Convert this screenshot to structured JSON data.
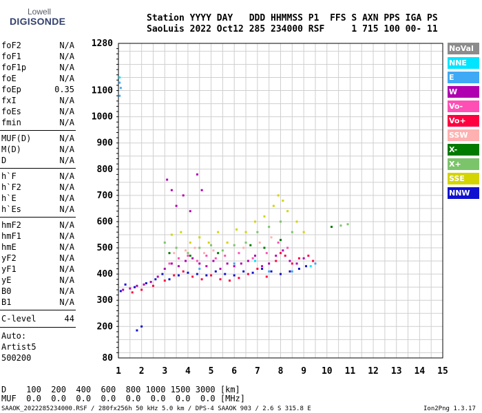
{
  "logo": {
    "line1": "Lowell",
    "line2": "DIGISONDE"
  },
  "header": {
    "line1": "Station YYYY DAY   DDD HHMMSS P1  FFS S AXN PPS IGA PS",
    "line2": "SaoLuis 2022 Oct12 285 234000 RSF     1 715 100 00- 11"
  },
  "params": {
    "group1": [
      {
        "name": "foF2",
        "value": "N/A"
      },
      {
        "name": "foF1",
        "value": "N/A"
      },
      {
        "name": "foF1p",
        "value": "N/A"
      },
      {
        "name": "foE",
        "value": "N/A"
      },
      {
        "name": "foEp",
        "value": "0.35"
      },
      {
        "name": "fxI",
        "value": "N/A"
      },
      {
        "name": "foEs",
        "value": "N/A"
      },
      {
        "name": "fmin",
        "value": "N/A"
      }
    ],
    "group2": [
      {
        "name": "MUF(D)",
        "value": "N/A"
      },
      {
        "name": "M(D)",
        "value": "N/A"
      },
      {
        "name": "D",
        "value": "N/A"
      }
    ],
    "group3": [
      {
        "name": "h`F",
        "value": "N/A"
      },
      {
        "name": "h`F2",
        "value": "N/A"
      },
      {
        "name": "h`E",
        "value": "N/A"
      },
      {
        "name": "h`Es",
        "value": "N/A"
      }
    ],
    "group4": [
      {
        "name": "hmF2",
        "value": "N/A"
      },
      {
        "name": "hmF1",
        "value": "N/A"
      },
      {
        "name": "hmE",
        "value": "N/A"
      },
      {
        "name": "yF2",
        "value": "N/A"
      },
      {
        "name": "yF1",
        "value": "N/A"
      },
      {
        "name": "yE",
        "value": "N/A"
      },
      {
        "name": "B0",
        "value": "N/A"
      },
      {
        "name": "B1",
        "value": "N/A"
      }
    ],
    "clevel": {
      "name": "C-level",
      "value": "44"
    }
  },
  "auto": {
    "line1": "Auto:",
    "line2": "Artist5",
    "line3": "500200"
  },
  "legend": [
    {
      "label": "NoVal",
      "color": "#8c8c8c"
    },
    {
      "label": "NNE",
      "color": "#00e5ff"
    },
    {
      "label": "E",
      "color": "#3fa9f5"
    },
    {
      "label": "W",
      "color": "#b000b0"
    },
    {
      "label": "Vo-",
      "color": "#ff4fb5"
    },
    {
      "label": "Vo+",
      "color": "#ff0040"
    },
    {
      "label": "SSW",
      "color": "#ffb0b0"
    },
    {
      "label": "X-",
      "color": "#007a00"
    },
    {
      "label": "X+",
      "color": "#7cc46a"
    },
    {
      "label": "SSE",
      "color": "#d4d400"
    },
    {
      "label": "NNW",
      "color": "#1010d0"
    }
  ],
  "footer": {
    "d_line": "D    100  200  400  600  800 1000 1500 3000 [km]",
    "muf_line": "MUF  0.0  0.0  0.0  0.0  0.0  0.0  0.0  0.0 [MHz]",
    "file_line": "SAAOK_2022285234000.RSF / 280fx256h 50 kHz 5.0 km / DPS-4 SAAOK 903 / 2.6 S 315.8 E",
    "version": "Ion2Png 1.3.17"
  },
  "chart_data": {
    "type": "scatter",
    "title": "",
    "xlabel": "",
    "ylabel": "",
    "xlim": [
      1,
      15
    ],
    "ylim": [
      80,
      1280
    ],
    "x_ticks": [
      "1",
      "2",
      "3",
      "4",
      "5",
      "6",
      "7",
      "8",
      "9",
      "10",
      "11",
      "12",
      "13",
      "14",
      "15"
    ],
    "y_ticks": [
      {
        "value": 80,
        "label": "80"
      },
      {
        "value": 200,
        "label": "200"
      },
      {
        "value": 300,
        "label": "300"
      },
      {
        "value": 400,
        "label": "400"
      },
      {
        "value": 500,
        "label": "500"
      },
      {
        "value": 600,
        "label": "600"
      },
      {
        "value": 700,
        "label": "700"
      },
      {
        "value": 800,
        "label": "800"
      },
      {
        "value": 900,
        "label": "900"
      },
      {
        "value": 1000,
        "label": "1000"
      },
      {
        "value": 1100,
        "label": "1100"
      },
      {
        "value": 1280,
        "label": "1280"
      }
    ],
    "series": [
      {
        "name": "W",
        "color": "#b000b0",
        "points": [
          [
            1.2,
            340
          ],
          [
            1.5,
            345
          ],
          [
            1.8,
            355
          ],
          [
            2.1,
            360
          ],
          [
            2.4,
            370
          ],
          [
            2.7,
            390
          ],
          [
            3.0,
            420
          ],
          [
            3.3,
            440
          ],
          [
            3.6,
            430
          ],
          [
            3.9,
            450
          ],
          [
            4.2,
            460
          ],
          [
            4.5,
            440
          ],
          [
            4.8,
            430
          ],
          [
            5.1,
            450
          ],
          [
            5.4,
            420
          ],
          [
            5.7,
            440
          ],
          [
            6.0,
            430
          ],
          [
            6.3,
            440
          ],
          [
            6.6,
            450
          ],
          [
            6.9,
            470
          ],
          [
            7.2,
            430
          ],
          [
            7.5,
            440
          ],
          [
            7.8,
            470
          ],
          [
            8.1,
            490
          ],
          [
            8.4,
            450
          ],
          [
            8.7,
            440
          ],
          [
            9.0,
            460
          ],
          [
            3.1,
            760
          ],
          [
            3.3,
            720
          ],
          [
            3.5,
            660
          ],
          [
            3.8,
            700
          ],
          [
            4.1,
            640
          ],
          [
            4.4,
            780
          ],
          [
            4.6,
            720
          ]
        ]
      },
      {
        "name": "Vo+",
        "color": "#ff0040",
        "points": [
          [
            1.6,
            330
          ],
          [
            2.0,
            340
          ],
          [
            2.5,
            355
          ],
          [
            3.0,
            375
          ],
          [
            3.4,
            395
          ],
          [
            3.8,
            410
          ],
          [
            4.2,
            390
          ],
          [
            4.6,
            380
          ],
          [
            5.0,
            395
          ],
          [
            5.4,
            380
          ],
          [
            5.8,
            375
          ],
          [
            6.2,
            385
          ],
          [
            6.6,
            400
          ],
          [
            7.0,
            420
          ],
          [
            7.4,
            390
          ],
          [
            7.8,
            450
          ],
          [
            8.0,
            480
          ],
          [
            8.2,
            470
          ],
          [
            8.5,
            440
          ],
          [
            8.8,
            460
          ],
          [
            9.2,
            470
          ],
          [
            9.4,
            450
          ]
        ]
      },
      {
        "name": "NNW",
        "color": "#1010d0",
        "points": [
          [
            1.1,
            335
          ],
          [
            1.3,
            360
          ],
          [
            1.7,
            350
          ],
          [
            2.2,
            365
          ],
          [
            2.6,
            380
          ],
          [
            2.9,
            400
          ],
          [
            3.2,
            380
          ],
          [
            3.6,
            395
          ],
          [
            4.0,
            405
          ],
          [
            4.4,
            400
          ],
          [
            4.8,
            395
          ],
          [
            5.2,
            410
          ],
          [
            5.6,
            400
          ],
          [
            6.0,
            395
          ],
          [
            6.4,
            410
          ],
          [
            6.8,
            405
          ],
          [
            7.2,
            420
          ],
          [
            7.6,
            410
          ],
          [
            8.0,
            400
          ],
          [
            8.4,
            410
          ],
          [
            8.8,
            420
          ],
          [
            9.1,
            430
          ],
          [
            2.0,
            200
          ],
          [
            1.8,
            185
          ]
        ]
      },
      {
        "name": "SSE",
        "color": "#d4d400",
        "points": [
          [
            3.3,
            550
          ],
          [
            3.7,
            560
          ],
          [
            4.1,
            520
          ],
          [
            4.5,
            540
          ],
          [
            4.9,
            520
          ],
          [
            5.3,
            560
          ],
          [
            5.7,
            520
          ],
          [
            6.1,
            570
          ],
          [
            6.5,
            560
          ],
          [
            6.9,
            600
          ],
          [
            7.3,
            620
          ],
          [
            7.7,
            660
          ],
          [
            7.9,
            700
          ],
          [
            8.1,
            680
          ],
          [
            8.3,
            640
          ],
          [
            8.7,
            600
          ],
          [
            9.0,
            560
          ]
        ]
      },
      {
        "name": "X+",
        "color": "#7cc46a",
        "points": [
          [
            3.0,
            520
          ],
          [
            3.5,
            500
          ],
          [
            4.0,
            480
          ],
          [
            4.5,
            500
          ],
          [
            5.0,
            510
          ],
          [
            5.5,
            490
          ],
          [
            6.0,
            510
          ],
          [
            6.5,
            520
          ],
          [
            7.0,
            560
          ],
          [
            7.5,
            580
          ],
          [
            8.0,
            600
          ],
          [
            8.5,
            560
          ],
          [
            10.6,
            585
          ],
          [
            10.9,
            590
          ]
        ]
      },
      {
        "name": "E",
        "color": "#3fa9f5",
        "points": [
          [
            1.05,
            1130
          ],
          [
            1.1,
            1110
          ],
          [
            1.05,
            1080
          ],
          [
            4.5,
            420
          ],
          [
            6.0,
            440
          ],
          [
            7.5,
            410
          ],
          [
            8.5,
            410
          ],
          [
            9.5,
            440
          ]
        ]
      },
      {
        "name": "Vo-",
        "color": "#ff4fb5",
        "points": [
          [
            3.2,
            440
          ],
          [
            3.6,
            460
          ],
          [
            4.0,
            470
          ],
          [
            4.4,
            450
          ],
          [
            4.8,
            470
          ],
          [
            5.2,
            460
          ],
          [
            5.6,
            470
          ],
          [
            6.2,
            480
          ],
          [
            6.8,
            460
          ],
          [
            7.4,
            480
          ],
          [
            7.9,
            520
          ],
          [
            8.3,
            500
          ]
        ]
      },
      {
        "name": "SSW",
        "color": "#ffb0b0",
        "points": [
          [
            3.4,
            480
          ],
          [
            3.9,
            490
          ],
          [
            4.3,
            500
          ],
          [
            4.7,
            480
          ],
          [
            5.1,
            490
          ],
          [
            6.4,
            500
          ],
          [
            7.1,
            520
          ],
          [
            7.6,
            540
          ]
        ]
      },
      {
        "name": "X-",
        "color": "#007a00",
        "points": [
          [
            3.2,
            480
          ],
          [
            4.1,
            470
          ],
          [
            5.3,
            480
          ],
          [
            6.7,
            510
          ],
          [
            7.3,
            500
          ],
          [
            8.0,
            530
          ],
          [
            10.2,
            580
          ]
        ]
      },
      {
        "name": "NNE",
        "color": "#00e5ff",
        "points": [
          [
            1.05,
            1150
          ],
          [
            6.9,
            450
          ],
          [
            9.3,
            430
          ]
        ]
      }
    ]
  }
}
